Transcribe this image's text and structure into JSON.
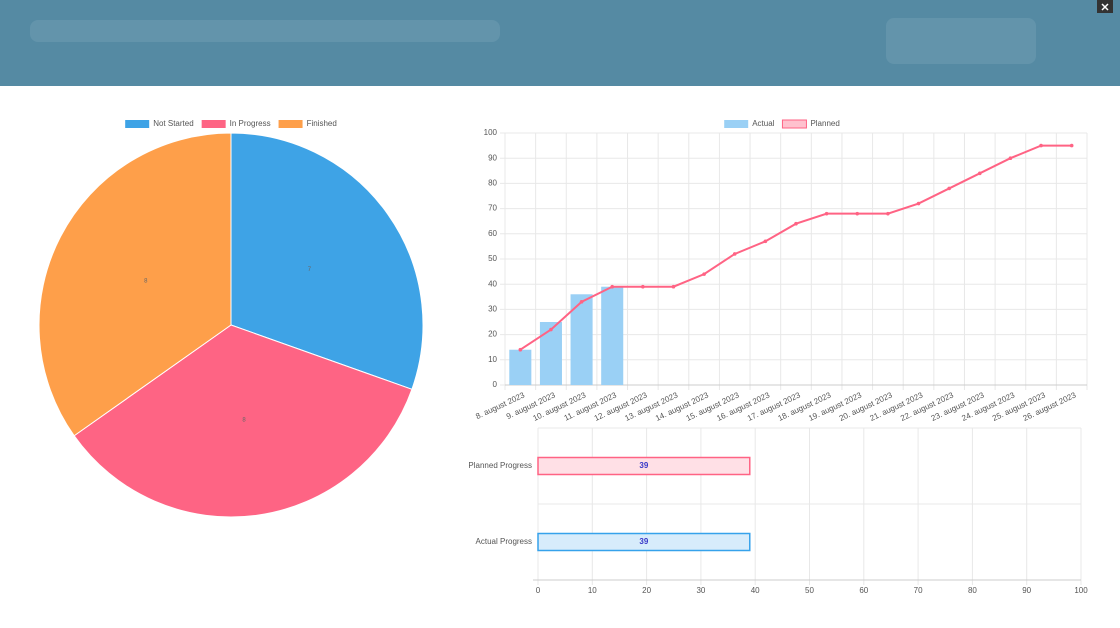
{
  "chart_data": [
    {
      "type": "pie",
      "categories": [
        "Not Started",
        "In Progress",
        "Finished"
      ],
      "values": [
        7,
        8,
        8
      ],
      "colors": [
        "#3ea3e6",
        "#fe6484",
        "#fe9f4a"
      ],
      "legend": "top"
    },
    {
      "type": "combo",
      "categories": [
        "8. august 2023",
        "9. august 2023",
        "10. august 2023",
        "11. august 2023",
        "12. august 2023",
        "13. august 2023",
        "14. august 2023",
        "15. august 2023",
        "16. august 2023",
        "17. august 2023",
        "18. august 2023",
        "19. august 2023",
        "20. august 2023",
        "21. august 2023",
        "22. august 2023",
        "23. august 2023",
        "24. august 2023",
        "25. august 2023",
        "26. august 2023"
      ],
      "series": [
        {
          "name": "Actual",
          "type": "bar",
          "color": "#9ad0f5",
          "values": [
            14,
            25,
            36,
            39,
            null,
            null,
            null,
            null,
            null,
            null,
            null,
            null,
            null,
            null,
            null,
            null,
            null,
            null,
            null
          ]
        },
        {
          "name": "Planned",
          "type": "line",
          "color": "#ff6384",
          "values": [
            14,
            22,
            33,
            39,
            39,
            39,
            44,
            52,
            57,
            64,
            68,
            68,
            68,
            72,
            78,
            84,
            90,
            95,
            95
          ]
        }
      ],
      "ylim": [
        0,
        100
      ],
      "yticks": [
        0,
        10,
        20,
        30,
        40,
        50,
        60,
        70,
        80,
        90,
        100
      ],
      "grid": true,
      "legend": "top"
    },
    {
      "type": "hbar",
      "categories": [
        "Planned Progress",
        "Actual Progress"
      ],
      "values": [
        39,
        39
      ],
      "colors": [
        "#ffe0e6",
        "#d7ecfb"
      ],
      "border_colors": [
        "#ff6384",
        "#36a2eb"
      ],
      "xlim": [
        0,
        100
      ],
      "xticks": [
        0,
        10,
        20,
        30,
        40,
        50,
        60,
        70,
        80,
        90,
        100
      ],
      "grid": true
    }
  ]
}
